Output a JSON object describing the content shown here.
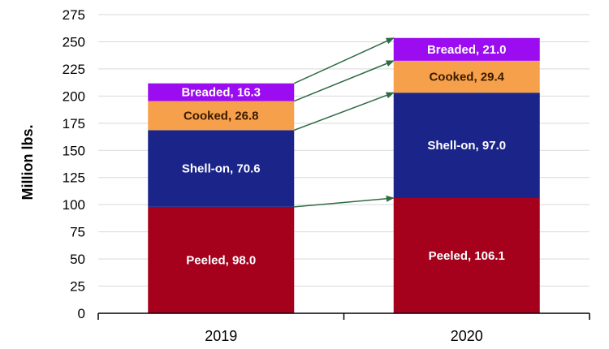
{
  "chart_data": {
    "type": "bar",
    "stacked": true,
    "title": "",
    "xlabel": "",
    "ylabel": "Million lbs.",
    "ylim": [
      0,
      275
    ],
    "yticks": [
      0,
      25,
      50,
      75,
      100,
      125,
      150,
      175,
      200,
      225,
      250,
      275
    ],
    "grid": "horizontal",
    "categories": [
      "2019",
      "2020"
    ],
    "series": [
      {
        "name": "Peeled",
        "color": "#a5001c",
        "label_color": "#ffffff",
        "values": [
          98.0,
          106.1
        ],
        "labels": [
          "Peeled, 98.0",
          "Peeled, 106.1"
        ]
      },
      {
        "name": "Shell-on",
        "color": "#1a2489",
        "label_color": "#ffffff",
        "values": [
          70.6,
          97.0
        ],
        "labels": [
          "Shell-on, 70.6",
          "Shell-on, 97.0"
        ]
      },
      {
        "name": "Cooked",
        "color": "#f6a04b",
        "label_color": "#3a1a00",
        "values": [
          26.8,
          29.4
        ],
        "labels": [
          "Cooked, 26.8",
          "Cooked, 29.4"
        ]
      },
      {
        "name": "Breaded",
        "color": "#9b0df0",
        "label_color": "#ffffff",
        "values": [
          16.3,
          21.0
        ],
        "labels": [
          "Breaded, 16.3",
          "Breaded, 21.0"
        ]
      }
    ],
    "arrow_color": "#2e6b45",
    "grid_color": "#d9d9d9",
    "axis_color": "#000000"
  }
}
